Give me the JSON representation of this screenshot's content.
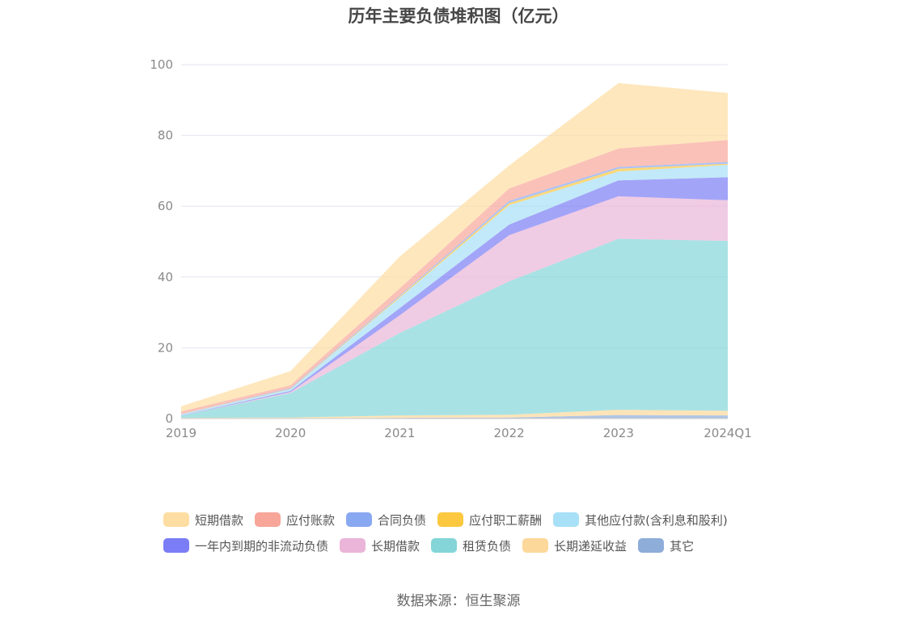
{
  "chart_data": {
    "type": "area",
    "stacked": true,
    "title": "历年主要负债堆积图（亿元）",
    "x": [
      "2019",
      "2020",
      "2021",
      "2022",
      "2023",
      "2024Q1"
    ],
    "y_ticks": [
      "0",
      "20",
      "40",
      "60",
      "80",
      "100"
    ],
    "ylim": [
      0,
      100
    ],
    "grid": true,
    "legend_position": "bottom",
    "series": [
      {
        "name": "其它",
        "color": "#8fadd9",
        "values": [
          0.1,
          0.1,
          0.2,
          0.3,
          1.0,
          0.9
        ]
      },
      {
        "name": "长期递延收益",
        "color": "#fcd89a",
        "values": [
          0.1,
          0.2,
          0.7,
          0.8,
          1.5,
          1.3
        ]
      },
      {
        "name": "租赁负债",
        "color": "#84d5d8",
        "values": [
          0.6,
          6.9,
          23.3,
          37.7,
          48.3,
          48.0
        ]
      },
      {
        "name": "长期借款",
        "color": "#eab5d8",
        "values": [
          0.0,
          0.3,
          5.0,
          13.0,
          12.0,
          11.5
        ]
      },
      {
        "name": "一年内到期的非流动负债",
        "color": "#7a7df5",
        "values": [
          0.1,
          0.3,
          2.0,
          3.0,
          4.5,
          6.5
        ]
      },
      {
        "name": "其他应付款(含利息和股利)",
        "color": "#a8e0f7",
        "values": [
          0.3,
          0.5,
          3.0,
          5.5,
          2.5,
          3.5
        ]
      },
      {
        "name": "应付职工薪酬",
        "color": "#fbc840",
        "values": [
          0.05,
          0.1,
          0.3,
          0.6,
          0.8,
          0.3
        ]
      },
      {
        "name": "合同负债",
        "color": "#89a8f2",
        "values": [
          0.05,
          0.2,
          0.3,
          0.6,
          0.5,
          0.5
        ]
      },
      {
        "name": "应付账款",
        "color": "#f8a69a",
        "values": [
          0.7,
          0.8,
          2.0,
          3.5,
          5.2,
          6.2
        ]
      },
      {
        "name": "短期借款",
        "color": "#fddda1",
        "values": [
          1.5,
          4.0,
          9.0,
          6.5,
          18.5,
          13.3
        ]
      }
    ],
    "legend_rows": [
      [
        "短期借款",
        "应付账款",
        "合同负债",
        "应付职工薪酬",
        "其他应付款(含利息和股利)"
      ],
      [
        "一年内到期的非流动负债",
        "长期借款",
        "租赁负债",
        "长期递延收益",
        "其它"
      ]
    ]
  },
  "source": "数据来源：恒生聚源"
}
